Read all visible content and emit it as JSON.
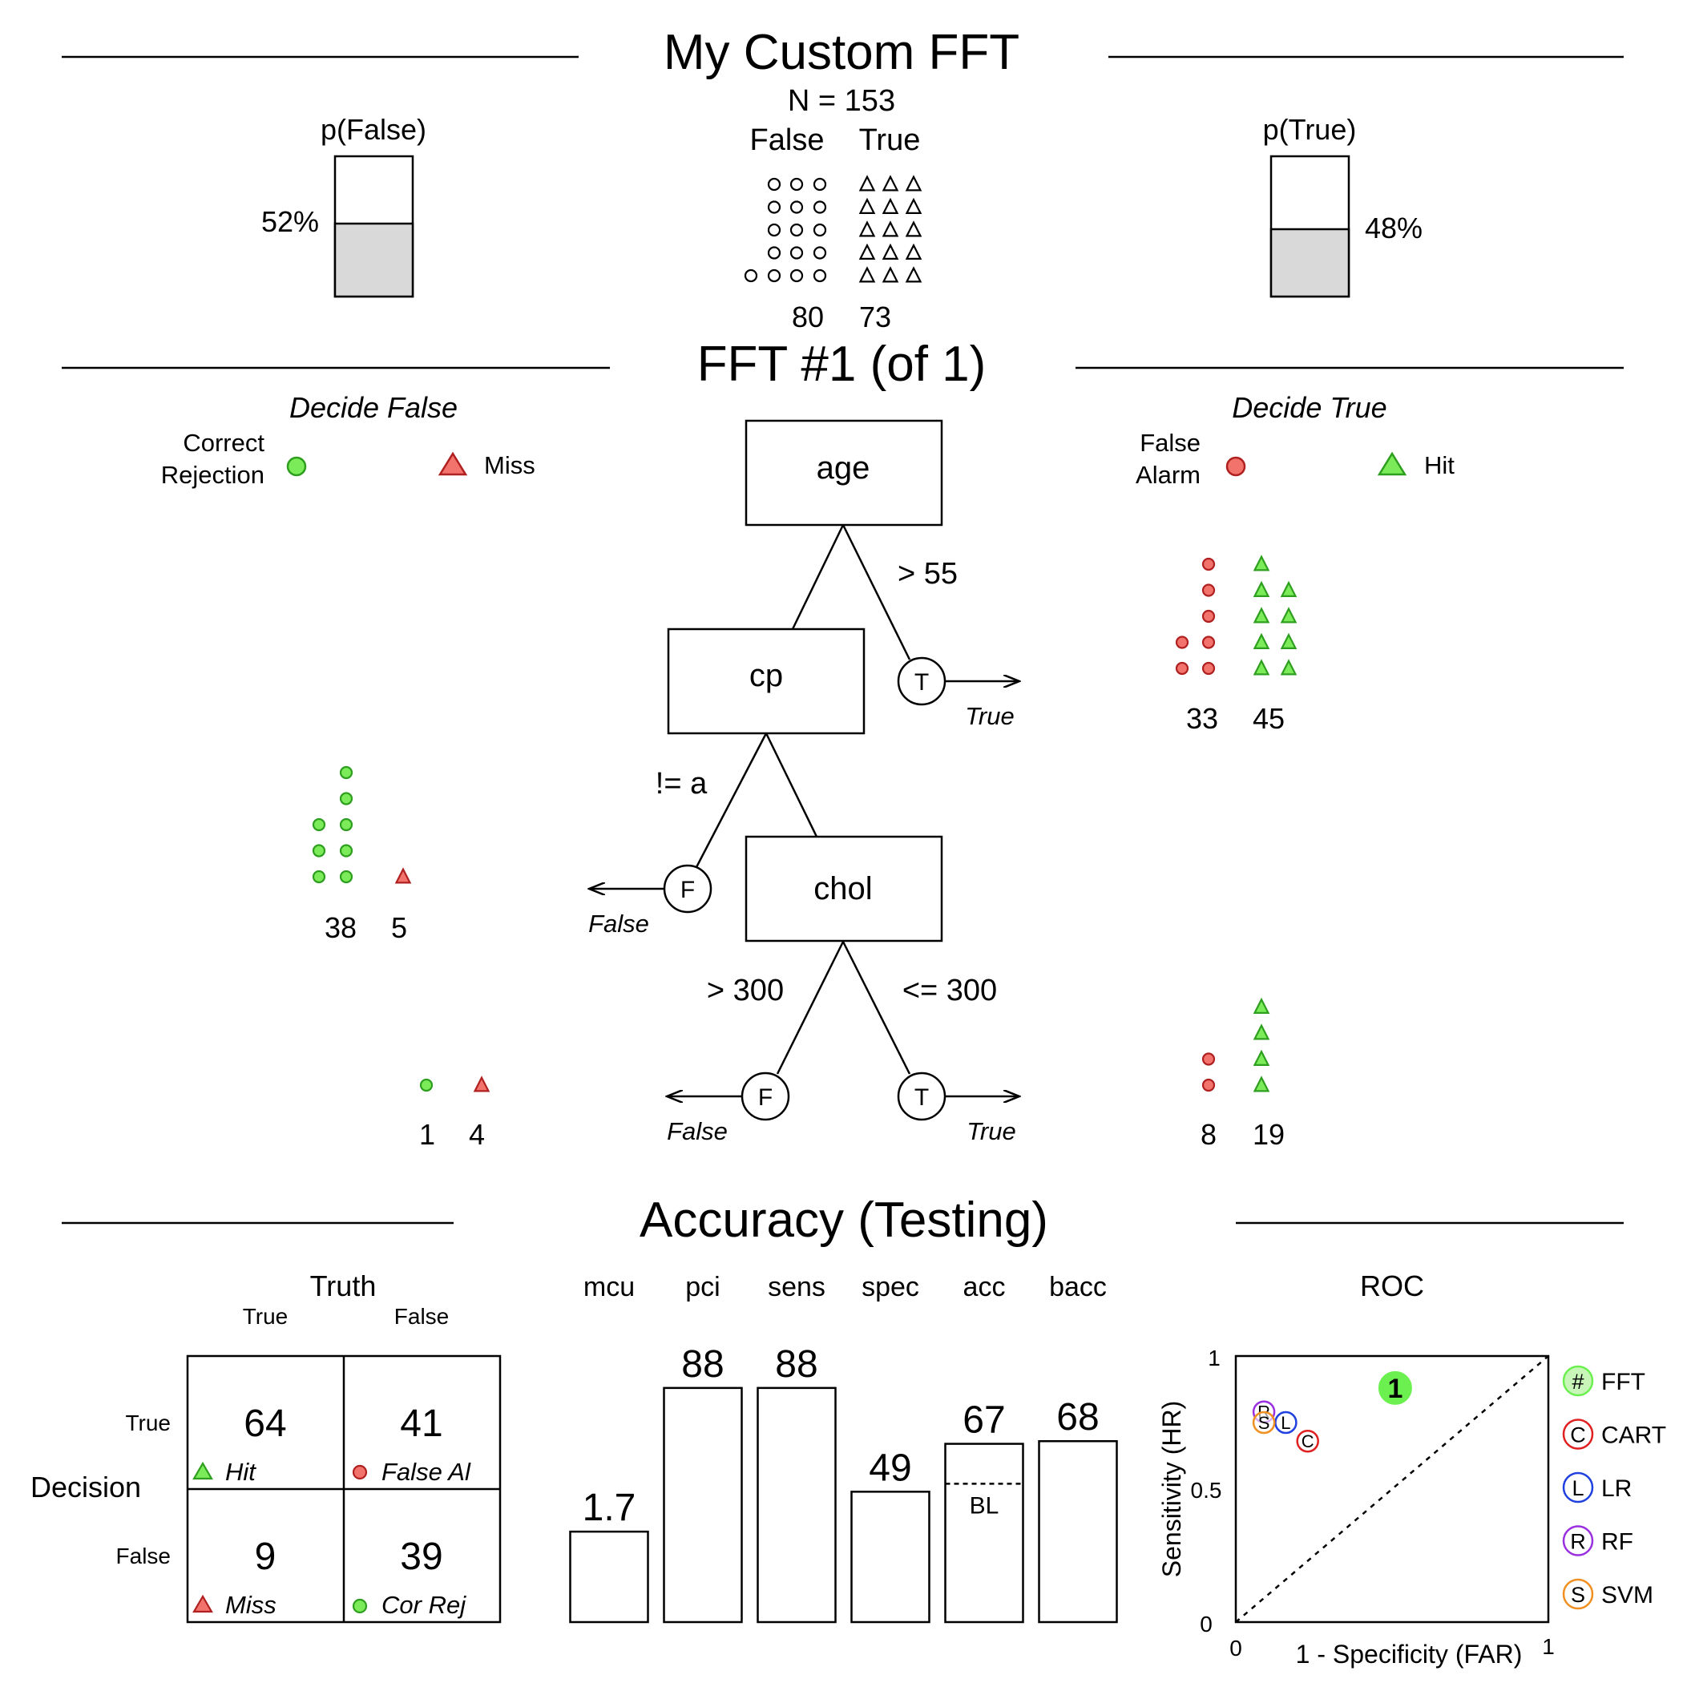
{
  "header": {
    "title": "My Custom FFT",
    "n_label": "N = 153",
    "class_false": "False",
    "class_true": "True",
    "count_false": "80",
    "count_true": "73",
    "p_false_title": "p(False)",
    "p_false_label": "52%",
    "p_false_value": 0.52,
    "p_true_title": "p(True)",
    "p_true_label": "48%",
    "p_true_value": 0.48
  },
  "tree": {
    "title": "FFT #1 (of 1)",
    "decide_false": "Decide False",
    "decide_true": "Decide True",
    "legend": {
      "correct_rejection": "Correct\nRejection",
      "miss": "Miss",
      "false_alarm": "False\nAlarm",
      "hit": "Hit"
    },
    "nodes": [
      {
        "cue": "age",
        "exit_threshold": "> 55",
        "exit_letter": "T",
        "exit_label": "True",
        "left_count": "33",
        "right_count": "45",
        "left_icons": 8,
        "right_icons": 9
      },
      {
        "cue": "cp",
        "exit_threshold": "!= a",
        "exit_letter": "F",
        "exit_label": "False",
        "left_count": "38",
        "right_count": "5",
        "left_icons": 8,
        "right_icons": 1
      },
      {
        "cue": "chol",
        "exit_threshold_false": "> 300",
        "exit_threshold_true": "<= 300",
        "false_letter": "F",
        "false_label": "False",
        "true_letter": "T",
        "true_label": "True",
        "false_left_count": "1",
        "false_right_count": "4",
        "true_left_count": "8",
        "true_right_count": "19",
        "false_left_icons": 1,
        "false_right_icons": 1,
        "true_left_icons": 2,
        "true_right_icons": 4
      }
    ]
  },
  "accuracy": {
    "title": "Accuracy (Testing)",
    "confusion": {
      "truth_label": "Truth",
      "decision_label": "Decision",
      "col_true": "True",
      "col_false": "False",
      "row_true": "True",
      "row_false": "False",
      "hit": "64",
      "hit_label": "Hit",
      "false_alarm": "41",
      "false_alarm_label": "False Al",
      "miss": "9",
      "miss_label": "Miss",
      "cor_rej": "39",
      "cor_rej_label": "Cor Rej"
    },
    "roc": {
      "title": "ROC",
      "xlabel": "1 - Specificity (FAR)",
      "ylabel": "Sensitivity (HR)",
      "x_ticks": [
        "0",
        "1"
      ],
      "y_ticks": [
        "0",
        "0.5",
        "1"
      ],
      "legend": [
        "FFT",
        "CART",
        "LR",
        "RF",
        "SVM"
      ],
      "legend_letters": [
        "#",
        "C",
        "L",
        "R",
        "S"
      ]
    }
  },
  "colors": {
    "green": "#7CEB5A",
    "green_dark": "#2E9E1F",
    "red": "#F2736B",
    "red_dark": "#B02020",
    "bar_fill": "#D9D9D9",
    "cart": "#E02020",
    "lr": "#2040E0",
    "rf": "#9B30E0",
    "svm": "#F09020"
  },
  "chart_data": {
    "type": "bar",
    "categories": [
      "mcu",
      "pci",
      "sens",
      "spec",
      "acc",
      "bacc"
    ],
    "values": [
      1.7,
      88,
      88,
      49,
      67,
      68
    ],
    "value_labels": [
      "1.7",
      "88",
      "88",
      "49",
      "67",
      "68"
    ],
    "baseline_label": "BL",
    "baseline_acc": 52,
    "ylim": [
      0,
      100
    ],
    "roc_points": [
      {
        "name": "FFT",
        "letter": "1",
        "far": 0.51,
        "hr": 0.88
      },
      {
        "name": "CART",
        "letter": "C",
        "far": 0.23,
        "hr": 0.68
      },
      {
        "name": "LR",
        "letter": "L",
        "far": 0.16,
        "hr": 0.75
      },
      {
        "name": "RF",
        "letter": "R",
        "far": 0.09,
        "hr": 0.79
      },
      {
        "name": "SVM",
        "letter": "S",
        "far": 0.09,
        "hr": 0.75
      }
    ]
  }
}
